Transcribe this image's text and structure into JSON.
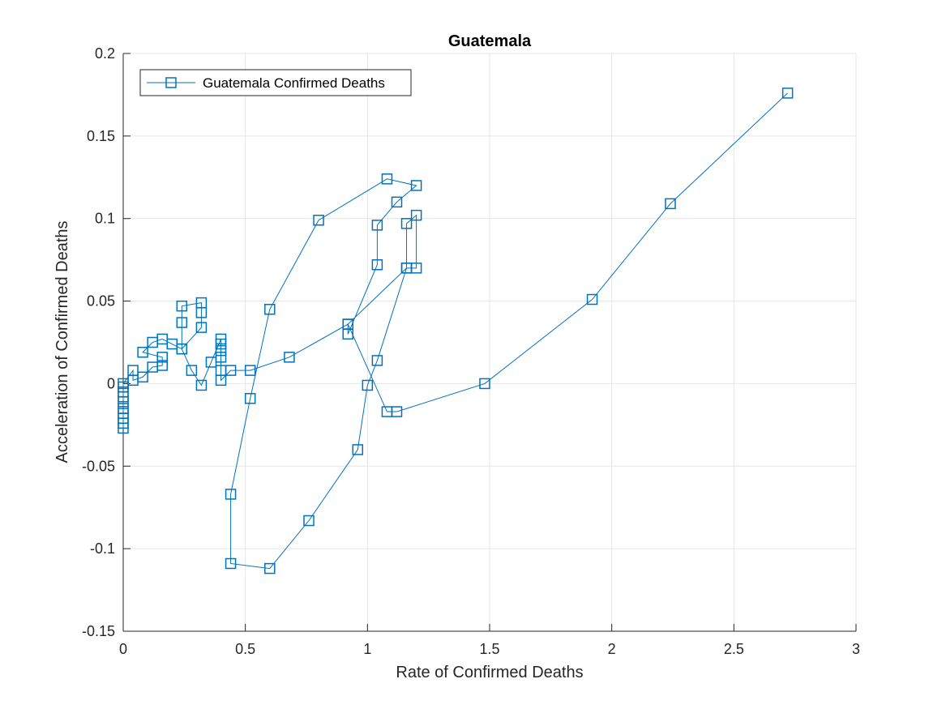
{
  "chart_data": {
    "type": "line",
    "title": "Guatemala",
    "xlabel": "Rate of Confirmed Deaths",
    "ylabel": "Acceleration of Confirmed Deaths",
    "xlim": [
      0,
      3
    ],
    "ylim": [
      -0.15,
      0.2
    ],
    "xticks": [
      0,
      0.5,
      1,
      1.5,
      2,
      2.5,
      3
    ],
    "xtick_labels": [
      "0",
      "0.5",
      "1",
      "1.5",
      "2",
      "2.5",
      "3"
    ],
    "yticks": [
      -0.15,
      -0.1,
      -0.05,
      0,
      0.05,
      0.1,
      0.15,
      0.2
    ],
    "ytick_labels": [
      "-0.15",
      "-0.1",
      "-0.05",
      "0",
      "0.05",
      "0.1",
      "0.15",
      "0.2"
    ],
    "grid": true,
    "legend_position": "top-left",
    "colors": {
      "series": "#0072BD",
      "axis": "#262626",
      "grid": "#e6e6e6",
      "background": "#ffffff"
    },
    "series": [
      {
        "name": "Guatemala Confirmed Deaths",
        "marker": "square",
        "points": [
          [
            0,
            -0.027
          ],
          [
            0,
            -0.024
          ],
          [
            0,
            -0.021
          ],
          [
            0,
            -0.018
          ],
          [
            0,
            -0.015
          ],
          [
            0,
            -0.011
          ],
          [
            0,
            -0.008
          ],
          [
            0,
            -0.005
          ],
          [
            0,
            -0.002
          ],
          [
            0,
            0
          ],
          [
            0.04,
            0.008
          ],
          [
            0.04,
            0.002
          ],
          [
            0.08,
            0.004
          ],
          [
            0.12,
            0.01
          ],
          [
            0.16,
            0.011
          ],
          [
            0.16,
            0.016
          ],
          [
            0.08,
            0.019
          ],
          [
            0.12,
            0.025
          ],
          [
            0.16,
            0.027
          ],
          [
            0.2,
            0.024
          ],
          [
            0.24,
            0.021
          ],
          [
            0.24,
            0.037
          ],
          [
            0.24,
            0.047
          ],
          [
            0.32,
            0.049
          ],
          [
            0.32,
            0.043
          ],
          [
            0.32,
            0.034
          ],
          [
            0.24,
            0.021
          ],
          [
            0.28,
            0.008
          ],
          [
            0.32,
            -0.001
          ],
          [
            0.36,
            0.013
          ],
          [
            0.4,
            0.027
          ],
          [
            0.4,
            0.024
          ],
          [
            0.4,
            0.02
          ],
          [
            0.4,
            0.016
          ],
          [
            0.4,
            0.008
          ],
          [
            0.4,
            0.002
          ],
          [
            0.44,
            0.008
          ],
          [
            0.52,
            0.008
          ],
          [
            0.68,
            0.016
          ],
          [
            0.92,
            0.036
          ],
          [
            1.16,
            0.07
          ],
          [
            1.2,
            0.07
          ],
          [
            1.2,
            0.102
          ],
          [
            1.16,
            0.097
          ],
          [
            1.16,
            0.07
          ],
          [
            1.04,
            0.014
          ],
          [
            1.0,
            -0.001
          ],
          [
            0.96,
            -0.04
          ],
          [
            0.76,
            -0.083
          ],
          [
            0.6,
            -0.112
          ],
          [
            0.44,
            -0.109
          ],
          [
            0.44,
            -0.067
          ],
          [
            0.52,
            -0.009
          ],
          [
            0.6,
            0.045
          ],
          [
            0.8,
            0.099
          ],
          [
            1.08,
            0.124
          ],
          [
            1.2,
            0.12
          ],
          [
            1.12,
            0.11
          ],
          [
            1.04,
            0.096
          ],
          [
            1.04,
            0.072
          ],
          [
            0.92,
            0.03
          ],
          [
            0.92,
            0.036
          ],
          [
            1.08,
            -0.017
          ],
          [
            1.12,
            -0.017
          ],
          [
            1.48,
            0
          ],
          [
            1.92,
            0.051
          ],
          [
            2.24,
            0.109
          ],
          [
            2.72,
            0.176
          ]
        ]
      }
    ]
  }
}
